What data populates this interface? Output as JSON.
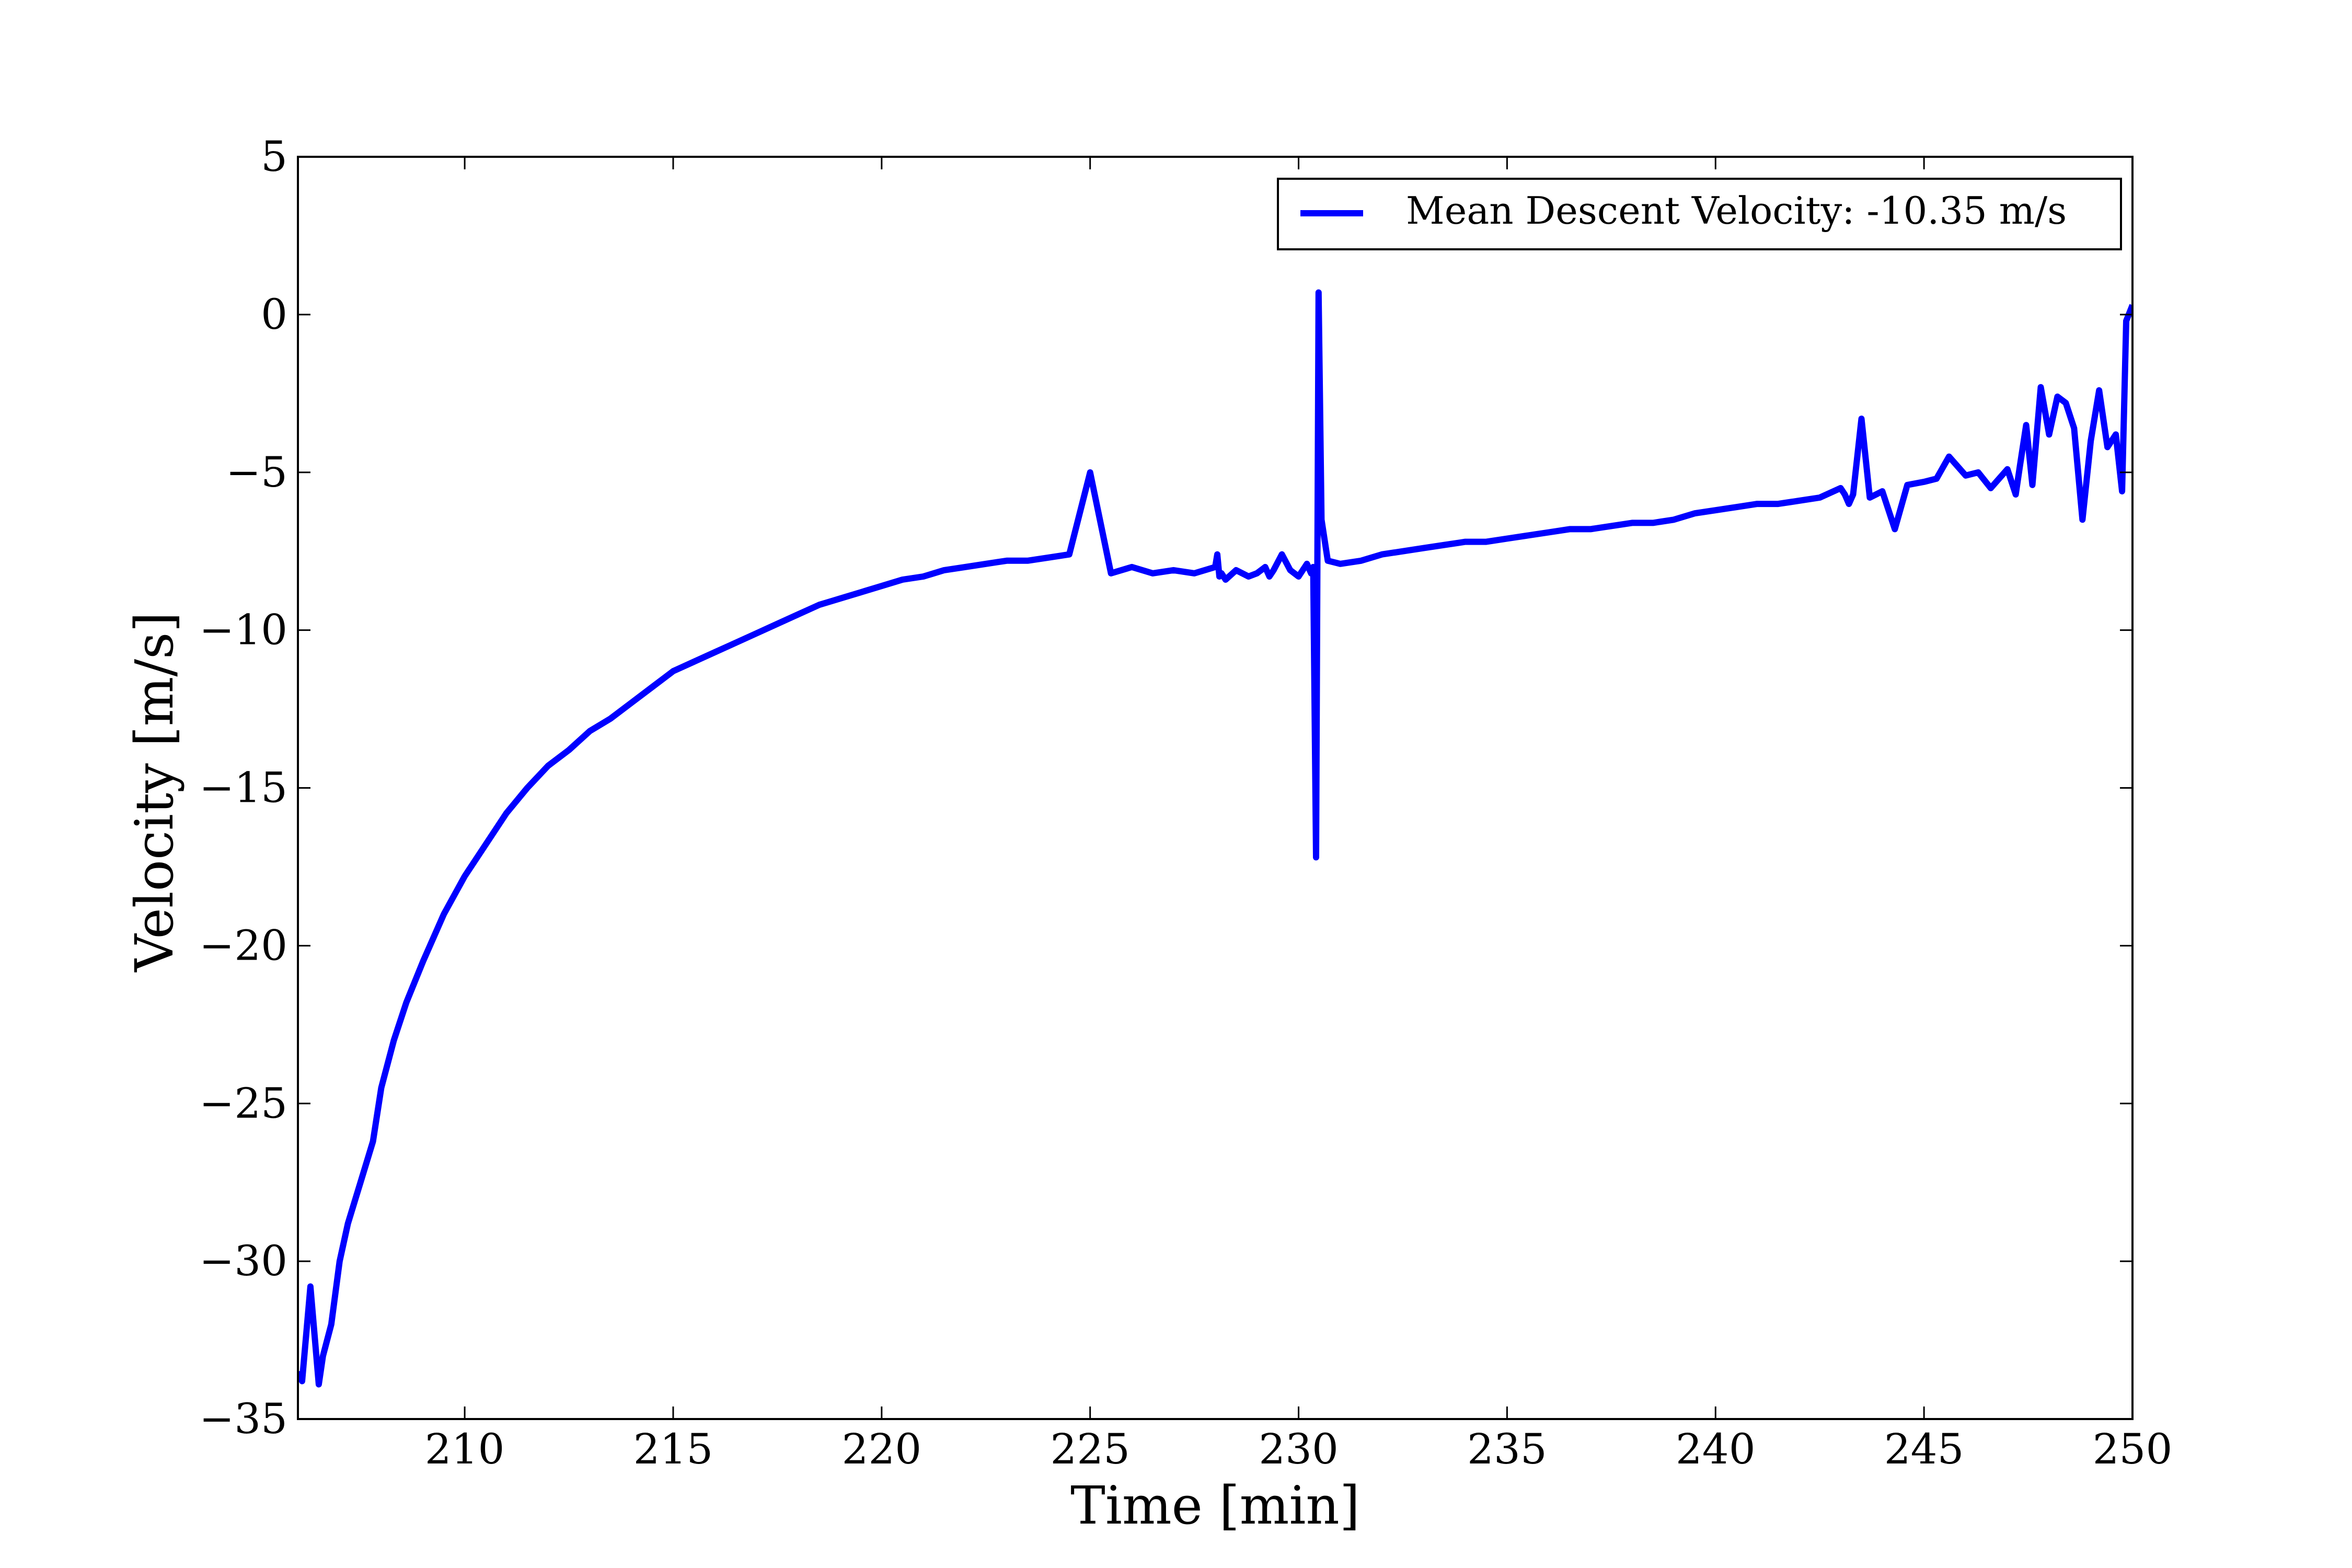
{
  "chart_data": {
    "type": "line",
    "title": "",
    "xlabel": "Time [min]",
    "ylabel": "Velocity [m/s]",
    "xlim": [
      206,
      250
    ],
    "ylim": [
      -35,
      5
    ],
    "xticks": [
      210,
      215,
      220,
      225,
      230,
      235,
      240,
      245,
      250
    ],
    "xtick_labels": [
      "210",
      "215",
      "220",
      "225",
      "230",
      "235",
      "240",
      "245",
      "250"
    ],
    "yticks": [
      5,
      0,
      -5,
      -10,
      -15,
      -20,
      -25,
      -30,
      -35
    ],
    "ytick_labels": [
      "5",
      "0",
      "−5",
      "−10",
      "−15",
      "−20",
      "−25",
      "−30",
      "−35"
    ],
    "grid": false,
    "legend_position": "top-right",
    "series": [
      {
        "name": "Mean Descent Velocity: -10.35 m/s",
        "color": "#0000ff",
        "x": [
          206.0,
          206.1,
          206.3,
          206.5,
          206.6,
          206.8,
          207.0,
          207.2,
          207.5,
          207.8,
          208.0,
          208.3,
          208.6,
          209.0,
          209.5,
          210.0,
          210.5,
          211.0,
          211.5,
          212.0,
          212.5,
          213.0,
          213.5,
          214.0,
          214.5,
          215.0,
          215.5,
          216.0,
          216.5,
          217.0,
          217.5,
          218.0,
          218.5,
          219.0,
          219.5,
          220.0,
          220.5,
          221.0,
          221.5,
          222.0,
          222.5,
          223.0,
          223.5,
          224.0,
          224.5,
          225.0,
          225.5,
          226.0,
          226.5,
          227.0,
          227.5,
          228.0,
          228.05,
          228.1,
          228.15,
          228.25,
          228.5,
          228.8,
          229.0,
          229.2,
          229.3,
          229.4,
          229.6,
          229.8,
          230.0,
          230.2,
          230.3,
          230.35,
          230.42,
          230.48,
          230.55,
          230.7,
          231.0,
          231.5,
          232.0,
          232.5,
          233.0,
          233.5,
          234.0,
          234.5,
          235.0,
          235.5,
          236.0,
          236.5,
          237.0,
          237.5,
          238.0,
          238.5,
          239.0,
          239.5,
          240.0,
          240.5,
          241.0,
          241.5,
          242.0,
          242.5,
          243.0,
          243.1,
          243.2,
          243.3,
          243.5,
          243.7,
          244.0,
          244.3,
          244.6,
          245.0,
          245.3,
          245.6,
          246.0,
          246.3,
          246.6,
          247.0,
          247.2,
          247.3,
          247.45,
          247.6,
          247.8,
          248.0,
          248.2,
          248.4,
          248.6,
          248.8,
          249.0,
          249.2,
          249.4,
          249.6,
          249.75,
          249.85,
          250.0
        ],
        "y": [
          -33.5,
          -33.8,
          -30.8,
          -33.9,
          -33.0,
          -32.0,
          -30.0,
          -28.8,
          -27.5,
          -26.2,
          -24.5,
          -23.0,
          -21.8,
          -20.5,
          -19.0,
          -17.8,
          -16.8,
          -15.8,
          -15.0,
          -14.3,
          -13.8,
          -13.2,
          -12.8,
          -12.3,
          -11.8,
          -11.3,
          -11.0,
          -10.7,
          -10.4,
          -10.1,
          -9.8,
          -9.5,
          -9.2,
          -9.0,
          -8.8,
          -8.6,
          -8.4,
          -8.3,
          -8.1,
          -8.0,
          -7.9,
          -7.8,
          -7.8,
          -7.7,
          -7.6,
          -5.0,
          -8.2,
          -8.0,
          -8.2,
          -8.1,
          -8.2,
          -8.0,
          -7.6,
          -8.3,
          -8.2,
          -8.4,
          -8.1,
          -8.3,
          -8.2,
          -8.0,
          -8.3,
          -8.1,
          -7.6,
          -8.1,
          -8.3,
          -7.9,
          -8.2,
          -8.0,
          -17.2,
          0.7,
          -6.5,
          -7.8,
          -7.9,
          -7.8,
          -7.6,
          -7.5,
          -7.4,
          -7.3,
          -7.2,
          -7.2,
          -7.1,
          -7.0,
          -6.9,
          -6.8,
          -6.8,
          -6.7,
          -6.6,
          -6.6,
          -6.5,
          -6.3,
          -6.2,
          -6.1,
          -6.0,
          -6.0,
          -5.9,
          -5.8,
          -5.5,
          -5.7,
          -6.0,
          -5.7,
          -3.3,
          -5.8,
          -5.6,
          -6.8,
          -5.4,
          -5.3,
          -5.2,
          -4.5,
          -5.1,
          -5.0,
          -5.5,
          -4.9,
          -5.7,
          -4.8,
          -3.5,
          -5.4,
          -2.3,
          -3.8,
          -2.6,
          -2.8,
          -3.6,
          -6.5,
          -4.0,
          -2.4,
          -4.2,
          -3.8,
          -5.6,
          -0.2,
          0.3
        ],
        "note_ignore": ""
      }
    ]
  }
}
